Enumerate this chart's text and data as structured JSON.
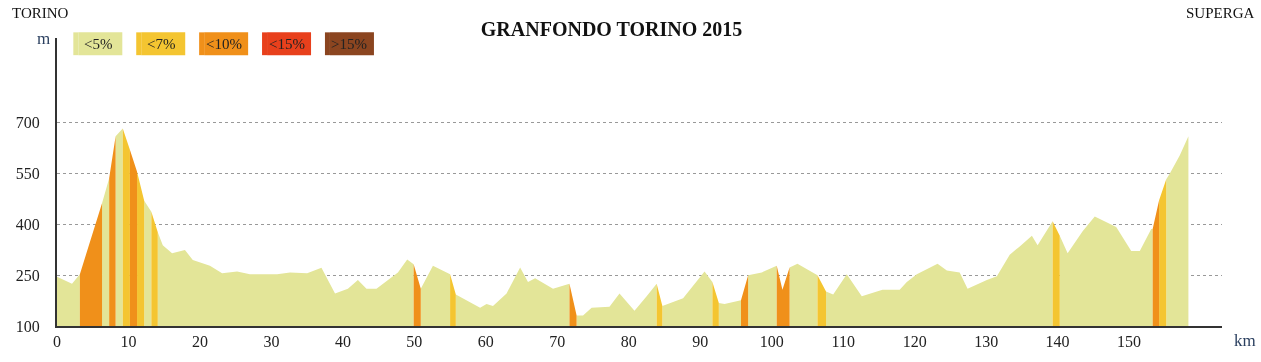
{
  "chart_data": {
    "type": "area",
    "title": "GRANFONDO TORINO 2015",
    "xlabel": "km",
    "ylabel": "m",
    "annotations": [
      "TORINO",
      "SUPERGA"
    ],
    "xlim": [
      0,
      163
    ],
    "ylim": [
      100,
      950
    ],
    "xticks": [
      0,
      10,
      20,
      30,
      40,
      50,
      60,
      70,
      80,
      90,
      100,
      110,
      120,
      130,
      140,
      150
    ],
    "yticks": [
      100,
      250,
      400,
      550,
      700
    ],
    "grid": "y",
    "line_style": "dotted",
    "legend": "top left",
    "series": [
      {
        "name": "<5%",
        "color": "#e3e598",
        "x": [
          0,
          2.1,
          3.2,
          null,
          6.3,
          7.3,
          null,
          8.2,
          9.2,
          null,
          12.2,
          13.2,
          null,
          14.1,
          14.8,
          16.1,
          17.9,
          19.0,
          21.4,
          23.1,
          25.2,
          27.0,
          30.8,
          32.6,
          35.0,
          37.0,
          38.9,
          40.7,
          42.1,
          43.3,
          44.7,
          47.7,
          49.0,
          49.9,
          null,
          50.9,
          52.6,
          55.0,
          null,
          55.8,
          59.2,
          60.1,
          61.0,
          62.9,
          64.8,
          65.9,
          66.9,
          69.4,
          71.7,
          null,
          72.7,
          73.6,
          74.8,
          77.3,
          78.7,
          80.8,
          82.5,
          83.9,
          null,
          84.7,
          87.6,
          90.6,
          91.7,
          null,
          92.6,
          93.4,
          95.7,
          null,
          96.7,
          98.6,
          100.7,
          null,
          102.5,
          103.6,
          106.4,
          null,
          107.6,
          108.6,
          110.5,
          112.6,
          115.5,
          117.9,
          118.9,
          120.3,
          123.2,
          124.5,
          126.3,
          127.4,
          130.1,
          131.5,
          133.3,
          134.7,
          136.4,
          137.2,
          139.3,
          null,
          140.3,
          141.4,
          143.5,
          145.2,
          148.2,
          150.3,
          151.5,
          153.1,
          153.3,
          null,
          155.2,
          155.7,
          157.1,
          158.3
        ],
        "values": [
          245,
          225,
          253,
          null,
          462,
          536,
          null,
          660,
          683,
          null,
          470,
          437,
          null,
          377,
          338,
          315,
          324,
          295,
          278,
          256,
          261,
          253,
          253,
          258,
          256,
          272,
          196,
          210,
          236,
          210,
          210,
          258,
          296,
          282,
          null,
          210,
          278,
          253,
          null,
          193,
          154,
          165,
          159,
          196,
          273,
          230,
          241,
          210,
          225,
          null,
          131,
          131,
          154,
          157,
          196,
          145,
          188,
          225,
          null,
          159,
          182,
          261,
          230,
          null,
          168,
          165,
          176,
          null,
          250,
          258,
          278,
          null,
          273,
          284,
          250,
          null,
          202,
          193,
          253,
          188,
          207,
          207,
          230,
          253,
          284,
          264,
          258,
          210,
          236,
          247,
          310,
          335,
          366,
          338,
          409,
          null,
          366,
          315,
          380,
          423,
          392,
          321,
          321,
          386,
          386,
          null,
          533,
          550,
          604,
          660
        ]
      },
      {
        "name": "<7%",
        "color": "#f4c531",
        "x": [
          9.2,
          10.2,
          null,
          11.2,
          12.2,
          null,
          13.2,
          14.1,
          null,
          55.0,
          55.8,
          null,
          83.9,
          84.7,
          null,
          91.7,
          92.6,
          null,
          106.4,
          107.6,
          null,
          139.3,
          140.3,
          null,
          154.2,
          155.2
        ],
        "values": [
          683,
          620,
          null,
          555,
          470,
          null,
          437,
          377,
          null,
          253,
          193,
          null,
          225,
          159,
          null,
          230,
          168,
          null,
          250,
          202,
          null,
          409,
          366,
          null,
          471,
          533
        ]
      },
      {
        "name": "<10%",
        "color": "#f0901a",
        "x": [
          3.2,
          6.3,
          null,
          7.3,
          8.2,
          null,
          10.2,
          11.2,
          null,
          49.9,
          50.9,
          null,
          71.7,
          72.7,
          null,
          95.7,
          96.7,
          null,
          100.7,
          101.5,
          102.5,
          null,
          153.3,
          154.2
        ],
        "values": [
          253,
          462,
          null,
          536,
          660,
          null,
          620,
          555,
          null,
          282,
          210,
          null,
          225,
          131,
          null,
          176,
          250,
          null,
          278,
          207,
          273,
          null,
          386,
          471
        ]
      },
      {
        "name": "<15%",
        "color": "#e8401c"
      },
      {
        "name": ">15%",
        "color": "#8b4520"
      }
    ]
  }
}
